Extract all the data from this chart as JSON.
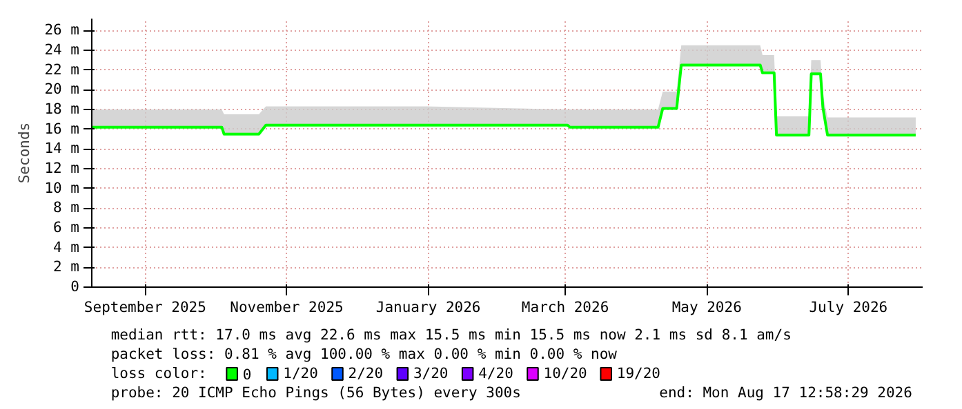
{
  "chart_data": {
    "type": "line",
    "ylabel": "Seconds",
    "legend_title": "loss color:",
    "legend": "bottom",
    "grid": true,
    "marker": "none",
    "line_style": "solid",
    "x": [
      "2025-08-24",
      "2025-10-19",
      "2025-10-20",
      "2025-11-04",
      "2025-11-07",
      "2026-01-15",
      "2026-03-17",
      "2026-03-18",
      "2026-04-25",
      "2026-04-27",
      "2026-05-03",
      "2026-05-05",
      "2026-06-08",
      "2026-06-09",
      "2026-06-14",
      "2026-06-15",
      "2026-06-29",
      "2026-06-30",
      "2026-07-04",
      "2026-07-05",
      "2026-07-07",
      "2026-08-14"
    ],
    "xlim": [
      "2025-08-24",
      "2026-08-17"
    ],
    "xticks": [
      {
        "value": "2025-09-16",
        "label": "September 2025"
      },
      {
        "value": "2025-11-16",
        "label": "November 2025"
      },
      {
        "value": "2026-01-16",
        "label": "January 2026"
      },
      {
        "value": "2026-03-16",
        "label": "March 2026"
      },
      {
        "value": "2026-05-16",
        "label": "May 2026"
      },
      {
        "value": "2026-07-16",
        "label": "July 2026"
      }
    ],
    "ylim": [
      0,
      27.2
    ],
    "yticks": [
      {
        "value": 0,
        "label": "0"
      },
      {
        "value": 2,
        "label": "2 m"
      },
      {
        "value": 4,
        "label": "4 m"
      },
      {
        "value": 6,
        "label": "6 m"
      },
      {
        "value": 8,
        "label": "8 m"
      },
      {
        "value": 10,
        "label": "10 m"
      },
      {
        "value": 12,
        "label": "12 m"
      },
      {
        "value": 14,
        "label": "14 m"
      },
      {
        "value": 16,
        "label": "16 m"
      },
      {
        "value": 18,
        "label": "18 m"
      },
      {
        "value": 20,
        "label": "20 m"
      },
      {
        "value": 22,
        "label": "22 m"
      },
      {
        "value": 24,
        "label": "24 m"
      },
      {
        "value": 26,
        "label": "26 m"
      }
    ],
    "series": [
      {
        "name": "0",
        "color": "#00ff00",
        "values": [
          16.2,
          16.2,
          15.5,
          15.5,
          16.4,
          16.4,
          16.4,
          16.2,
          16.2,
          18.1,
          18.1,
          22.5,
          22.5,
          21.7,
          21.7,
          15.4,
          15.4,
          21.6,
          21.6,
          18.2,
          15.4,
          15.4
        ],
        "lower": [
          16.2,
          16.2,
          15.5,
          15.5,
          16.4,
          16.4,
          16.4,
          16.2,
          16.2,
          18.1,
          18.1,
          22.5,
          22.5,
          21.7,
          21.7,
          15.4,
          15.4,
          21.6,
          21.6,
          18.2,
          15.4,
          15.4
        ],
        "upper": [
          18.0,
          18.0,
          17.5,
          17.5,
          18.3,
          18.3,
          18.0,
          18.0,
          18.0,
          19.8,
          19.8,
          24.5,
          24.5,
          23.5,
          23.5,
          17.3,
          17.3,
          23.0,
          23.0,
          19.5,
          17.2,
          17.2
        ]
      },
      {
        "name": "1/20",
        "color": "#00b8ff",
        "values": [
          null,
          null,
          null,
          null,
          null,
          null,
          null,
          null,
          null,
          null,
          null,
          null,
          null,
          null,
          null,
          null,
          null,
          null,
          null,
          null,
          null,
          null
        ]
      },
      {
        "name": "2/20",
        "color": "#0059ff",
        "values": [
          null,
          null,
          null,
          null,
          null,
          null,
          null,
          null,
          null,
          null,
          null,
          null,
          null,
          null,
          null,
          null,
          null,
          null,
          null,
          null,
          null,
          null
        ]
      },
      {
        "name": "3/20",
        "color": "#5e00ff",
        "values": [
          null,
          null,
          null,
          null,
          null,
          null,
          null,
          null,
          null,
          null,
          null,
          null,
          null,
          null,
          null,
          null,
          null,
          null,
          null,
          null,
          null,
          null
        ]
      },
      {
        "name": "4/20",
        "color": "#7e00ff",
        "values": [
          null,
          null,
          null,
          null,
          null,
          null,
          null,
          null,
          null,
          null,
          null,
          null,
          null,
          null,
          null,
          null,
          null,
          null,
          null,
          null,
          null,
          null
        ]
      },
      {
        "name": "10/20",
        "color": "#dd00ff",
        "values": [
          null,
          null,
          null,
          null,
          null,
          null,
          null,
          null,
          null,
          null,
          null,
          null,
          null,
          null,
          null,
          null,
          null,
          null,
          null,
          null,
          null,
          null
        ]
      },
      {
        "name": "19/20",
        "color": "#ff0000",
        "values": [
          null,
          null,
          null,
          null,
          null,
          null,
          null,
          null,
          null,
          null,
          null,
          null,
          null,
          null,
          null,
          null,
          null,
          null,
          null,
          null,
          null,
          null
        ]
      }
    ],
    "annotations": [
      "median rtt:  17.0 ms avg  22.6 ms max  15.5 ms min  15.5 ms now  2.1 ms sd  8.1   am/s",
      "packet loss: 0.81 % avg  100.00 % max  0.00 % min  0.00 % now",
      "probe:       20 ICMP Echo Pings (56 Bytes) every 300s",
      "end: Mon Aug 17 12:58:29 2026"
    ]
  }
}
